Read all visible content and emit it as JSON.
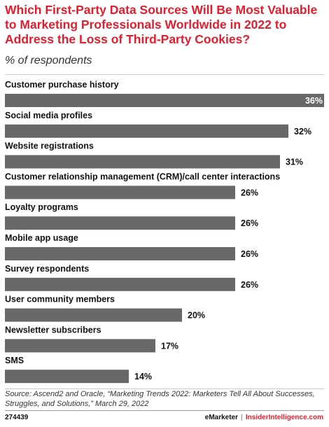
{
  "header": {
    "title": "Which First-Party Data Sources Will Be Most Valuable to Marketing Professionals Worldwide in 2022 to Address the Loss of Third-Party Cookies?",
    "subtitle": "% of respondents"
  },
  "chart_data": {
    "type": "bar",
    "orientation": "horizontal",
    "categories": [
      "Customer purchase history",
      "Social media profiles",
      "Website registrations",
      "Customer relationship management (CRM)/call center interactions",
      "Loyalty programs",
      "Mobile app usage",
      "Survey respondents",
      "User community members",
      "Newsletter subscribers",
      "SMS"
    ],
    "values": [
      36,
      32,
      31,
      26,
      26,
      26,
      26,
      20,
      17,
      14
    ],
    "value_labels": [
      "36%",
      "32%",
      "31%",
      "26%",
      "26%",
      "26%",
      "26%",
      "20%",
      "17%",
      "14%"
    ],
    "title": "Which First-Party Data Sources Will Be Most Valuable to Marketing Professionals Worldwide in 2022 to Address the Loss of Third-Party Cookies?",
    "subtitle": "% of respondents",
    "xlim": [
      0,
      36
    ],
    "bar_color": "#686868",
    "grid": false,
    "legend": "none"
  },
  "footer": {
    "source": "Source: Ascend2 and Oracle, “Marketing Trends 2022: Marketers Tell All About Successes, Struggles, and Solutions,” March 29, 2022",
    "chart_id": "274439",
    "brand_left": "eMarketer",
    "brand_sep": "|",
    "brand_right": "InsiderIntelligence.com"
  },
  "colors": {
    "title": "#e21d2d",
    "bar": "#686868",
    "brand_accent": "#e21d2d"
  }
}
